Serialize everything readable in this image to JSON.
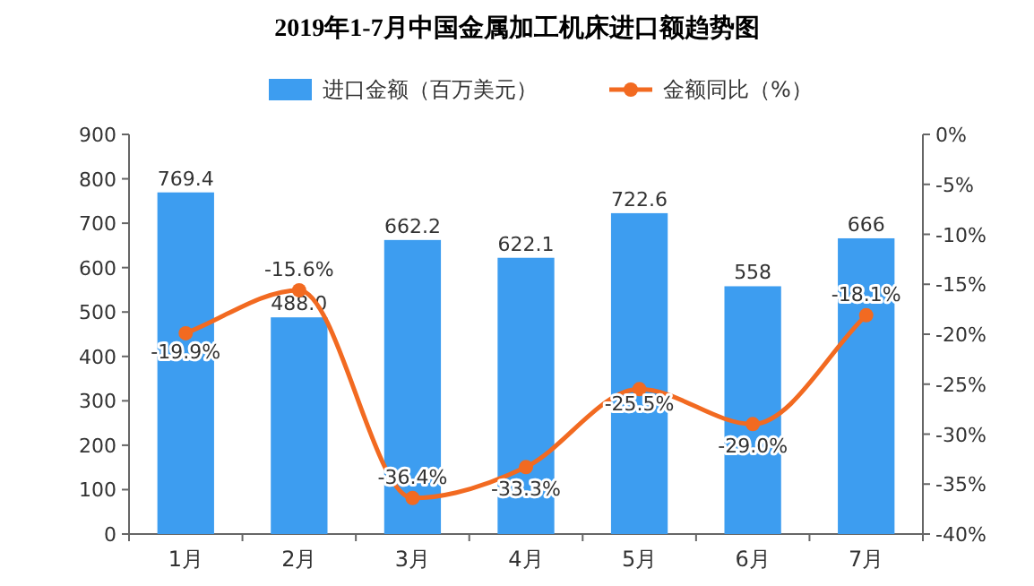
{
  "chart_data": {
    "type": "bar",
    "title": "2019年1-7月中国金属加工机床进口额趋势图",
    "categories": [
      "1月",
      "2月",
      "3月",
      "4月",
      "5月",
      "6月",
      "7月"
    ],
    "series": [
      {
        "name": "进口金额（百万美元）",
        "color": "#3d9df0",
        "values": [
          769.4,
          488.0,
          662.2,
          622.1,
          722.6,
          558,
          666
        ],
        "value_labels": [
          "769.4",
          "488.0",
          "662.2",
          "622.1",
          "722.6",
          "558",
          "666"
        ]
      },
      {
        "name": "金额同比（%）",
        "type": "line",
        "axis": "y2",
        "color": "#f26a21",
        "marker": "circle",
        "values": [
          -19.9,
          -15.6,
          -36.4,
          -33.3,
          -25.5,
          -29.0,
          -18.1
        ],
        "value_labels": [
          "-19.9%",
          "-15.6%",
          "-36.4%",
          "-33.3%",
          "-25.5%",
          "-29.0%",
          "-18.1%"
        ]
      }
    ],
    "ylim": [
      0,
      900
    ],
    "yticks": [
      0,
      100,
      200,
      300,
      400,
      500,
      600,
      700,
      800,
      900
    ],
    "y2lim": [
      -40,
      0
    ],
    "y2ticks": [
      {
        "value": 0,
        "label": "0%"
      },
      {
        "value": -5,
        "label": "-5%"
      },
      {
        "value": -10,
        "label": "-10%"
      },
      {
        "value": -15,
        "label": "-15%"
      },
      {
        "value": -20,
        "label": "-20%"
      },
      {
        "value": -25,
        "label": "-25%"
      },
      {
        "value": -30,
        "label": "-30%"
      },
      {
        "value": -35,
        "label": "-35%"
      },
      {
        "value": -40,
        "label": "-40%"
      }
    ],
    "legend": "top",
    "grid": false
  }
}
